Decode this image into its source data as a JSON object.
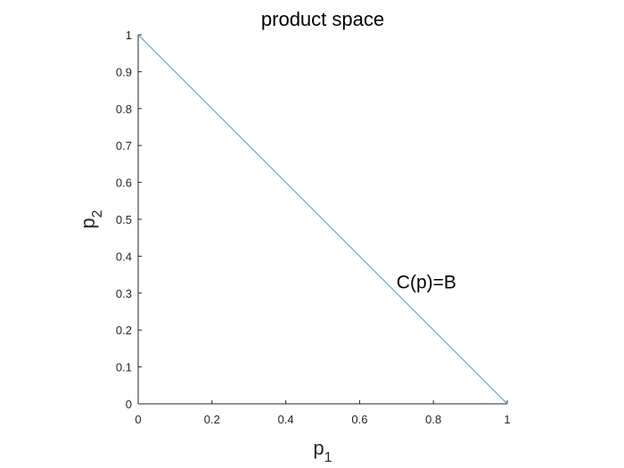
{
  "chart_data": {
    "type": "line",
    "title": "product space",
    "xlabel": {
      "base": "p",
      "sub": "1"
    },
    "ylabel": {
      "base": "p",
      "sub": "2"
    },
    "xlim": [
      0,
      1
    ],
    "ylim": [
      0,
      1
    ],
    "grid": false,
    "xticks": [
      0,
      0.2,
      0.4,
      0.6,
      0.8,
      1
    ],
    "xtick_labels": [
      "0",
      "0.2",
      "0.4",
      "0.6",
      "0.8",
      "1"
    ],
    "yticks": [
      0,
      0.1,
      0.2,
      0.3,
      0.4,
      0.5,
      0.6,
      0.7,
      0.8,
      0.9,
      1
    ],
    "ytick_labels": [
      "0",
      "0.1",
      "0.2",
      "0.3",
      "0.4",
      "0.5",
      "0.6",
      "0.7",
      "0.8",
      "0.9",
      "1"
    ],
    "series": [
      {
        "x": [
          0,
          1
        ],
        "y": [
          1,
          0
        ],
        "color": "#4d94d9"
      }
    ],
    "annotations": [
      {
        "text": "C(p)=B",
        "x": 0.7,
        "y": 0.33
      }
    ],
    "axis_color": "#262626"
  }
}
